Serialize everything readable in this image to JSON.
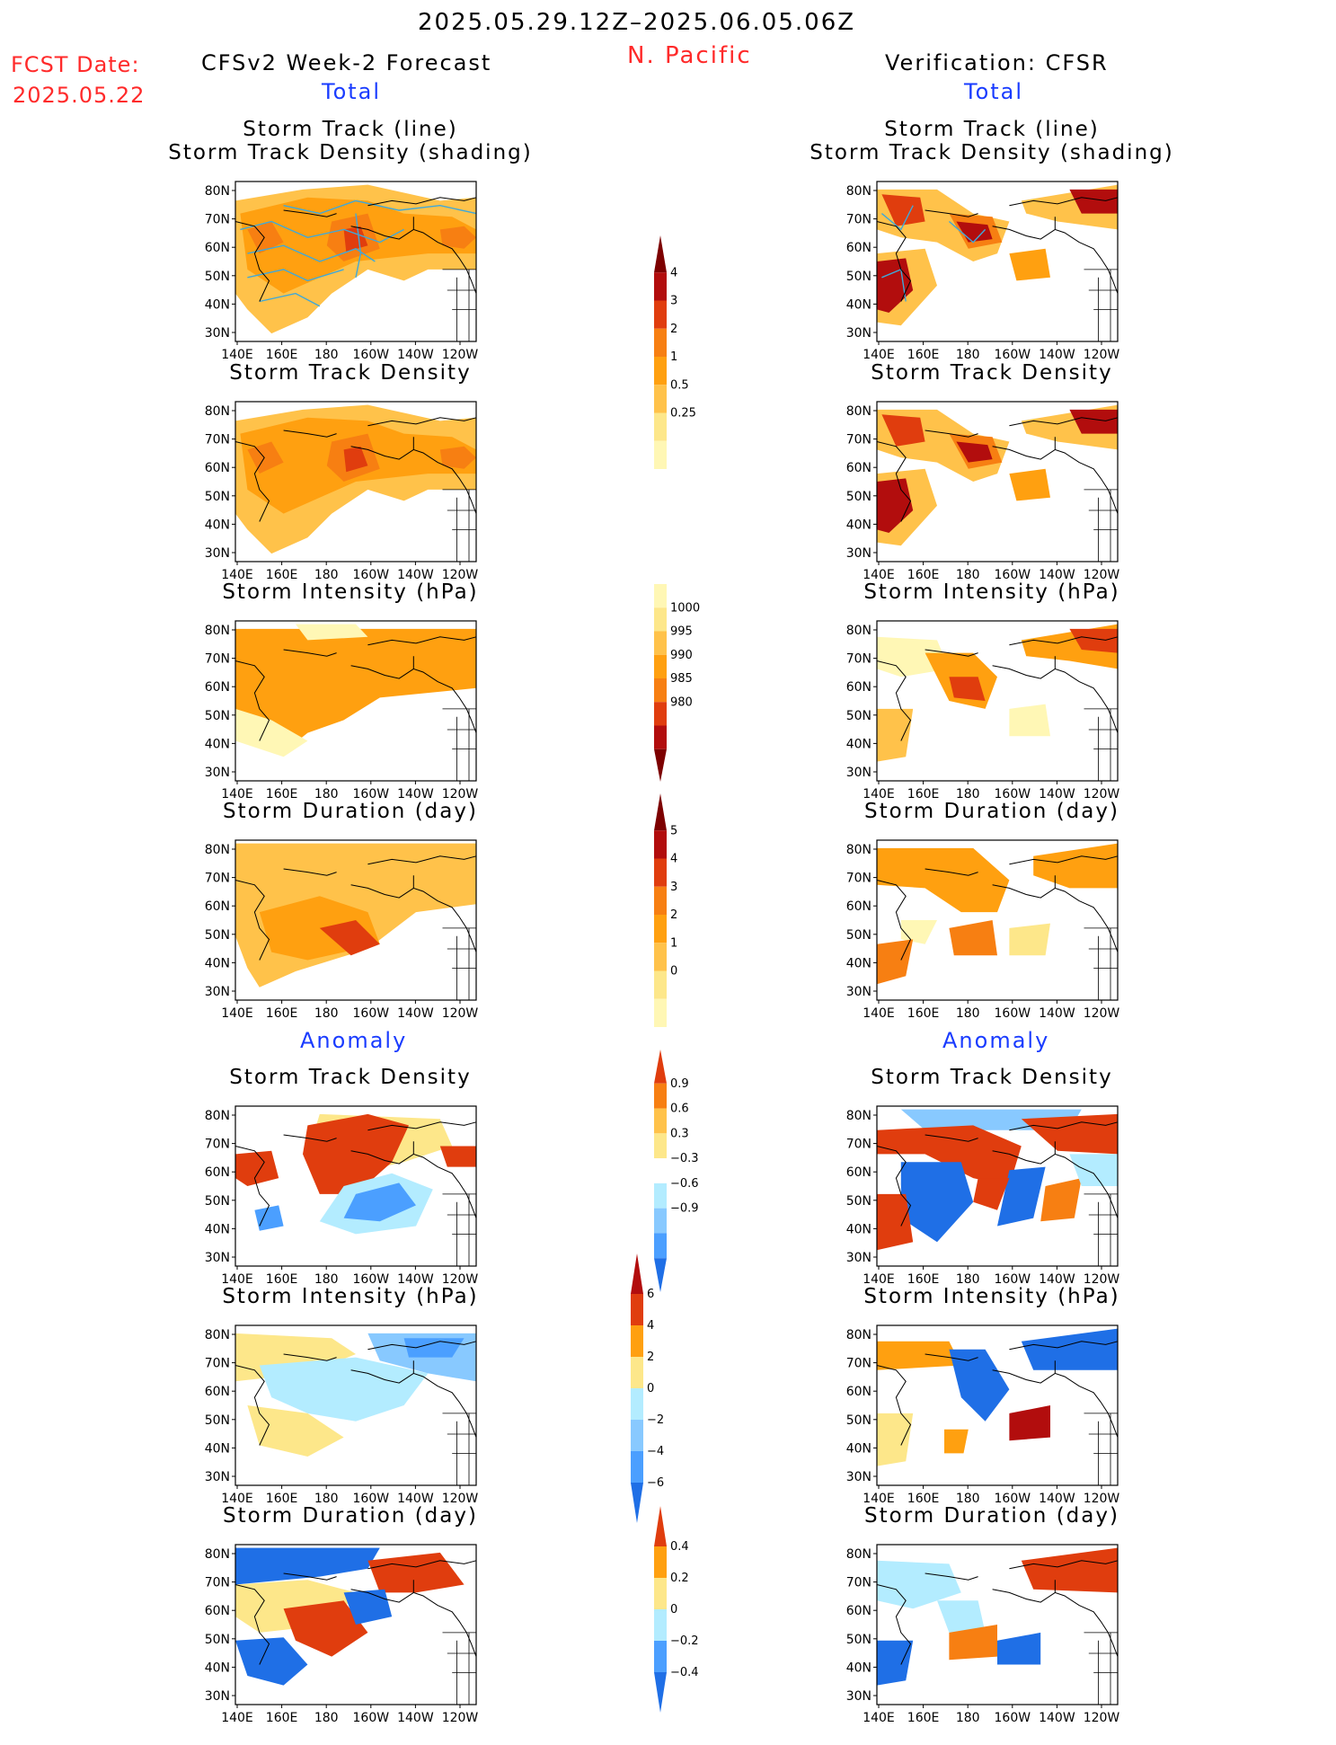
{
  "header": {
    "period": "2025.05.29.12Z–2025.06.05.06Z",
    "region": "N. Pacific",
    "fcst_label": "FCST Date:",
    "fcst_date": "2025.05.22",
    "left_title": "CFSv2 Week-2 Forecast",
    "right_title": "Verification: CFSR",
    "total_label": "Total",
    "anomaly_label": "Anomaly"
  },
  "panel_titles": {
    "track_line": "Storm Track (line)",
    "track_shading": "Storm Track Density (shading)",
    "density": "Storm Track Density",
    "intensity": "Storm Intensity (hPa)",
    "duration": "Storm Duration (day)"
  },
  "axes": {
    "lat_ticks": [
      "80N",
      "70N",
      "60N",
      "50N",
      "40N",
      "30N"
    ],
    "lon_ticks": [
      "140E",
      "160E",
      "180",
      "160W",
      "140W",
      "120W"
    ]
  },
  "colors": {
    "pos": [
      "#fff7b5",
      "#fde78a",
      "#ffc24a",
      "#ffa010",
      "#f77f12",
      "#e03d0e",
      "#b20d0d",
      "#7d0000"
    ],
    "neg": [
      "#b3ecff",
      "#88c9ff",
      "#4b9fff",
      "#1f6fe6",
      "#0d4bc1"
    ],
    "track_line": "#40a8d8",
    "coast": "#000000"
  },
  "colorbars": {
    "track_density": [
      "4",
      "3",
      "2",
      "1",
      "0.5",
      "0.25"
    ],
    "intensity": [
      "1000",
      "995",
      "990",
      "985",
      "980"
    ],
    "duration": [
      "5",
      "4",
      "3",
      "2",
      "1",
      "0"
    ],
    "density_anom": [
      "0.9",
      "0.6",
      "0.3",
      "−0.3",
      "−0.6",
      "−0.9"
    ],
    "intensity_anom": [
      "6",
      "4",
      "2",
      "0",
      "−2",
      "−4",
      "−6"
    ],
    "duration_anom": [
      "0.4",
      "0.2",
      "0",
      "−0.2",
      "−0.4"
    ]
  }
}
